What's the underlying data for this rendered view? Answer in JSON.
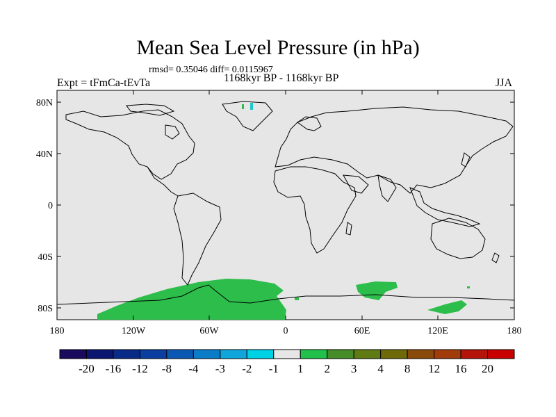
{
  "title": "Mean Sea Level Pressure (in hPa)",
  "stats_line": "rmsd= 0.35046 diff= 0.0115967",
  "left_label": "Expt = tFmCa-tEvTa",
  "center_label": "1168kyr BP - 1168kyr BP",
  "right_label": "JJA",
  "colors": {
    "land_outline": "#000000",
    "ocean_fill": "#e6e6e6",
    "anomaly_green": "#2cbd4a",
    "anomaly_cyan": "#1ec8c8"
  },
  "map": {
    "lat_labels": [
      "80N",
      "40N",
      "0",
      "40S",
      "80S"
    ],
    "lon_labels": [
      "180",
      "120W",
      "60W",
      "0",
      "60E",
      "120E",
      "180"
    ]
  },
  "colorbar": {
    "colors": [
      "#1a0a5e",
      "#0a1670",
      "#0a2a88",
      "#0a3ea0",
      "#0a58b4",
      "#0a7cc8",
      "#10a6dc",
      "#00d2e6",
      "#e6e6e6",
      "#20c04a",
      "#468c28",
      "#607a14",
      "#6e6a0a",
      "#8a4a0a",
      "#a23c0a",
      "#b4140a",
      "#c80000"
    ],
    "labels": [
      "-20",
      "-16",
      "-12",
      "-8",
      "-4",
      "-3",
      "-2",
      "-1",
      "1",
      "2",
      "3",
      "4",
      "8",
      "12",
      "16",
      "20"
    ]
  }
}
